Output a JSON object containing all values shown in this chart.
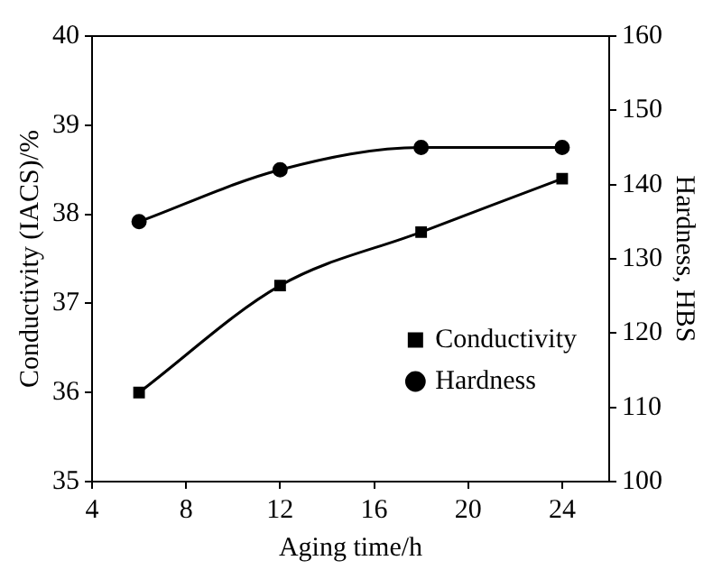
{
  "chart_data": {
    "type": "line",
    "xlabel": "Aging time/h",
    "ylabel": "Conductivity (IACS)/%",
    "y2label": "Hardness, HBS",
    "x": [
      6,
      12,
      18,
      24
    ],
    "series": [
      {
        "name": "Conductivity",
        "color": "#000000",
        "marker": "square",
        "values": [
          36.0,
          37.2,
          37.8,
          38.4
        ]
      },
      {
        "name": "Hardness",
        "color": "#000000",
        "marker": "circle",
        "axis": "y2",
        "values": [
          135,
          142,
          145,
          145
        ]
      }
    ],
    "xlim": [
      4,
      26
    ],
    "xticks": [
      4,
      8,
      12,
      16,
      20,
      24
    ],
    "ylim": [
      35,
      40
    ],
    "yticks": [
      35,
      36,
      37,
      38,
      39,
      40
    ],
    "y2lim": [
      100,
      160
    ],
    "y2ticks": [
      100,
      110,
      120,
      130,
      140,
      150,
      160
    ],
    "grid": false,
    "legend": "bottom right",
    "line_style": "solid"
  }
}
